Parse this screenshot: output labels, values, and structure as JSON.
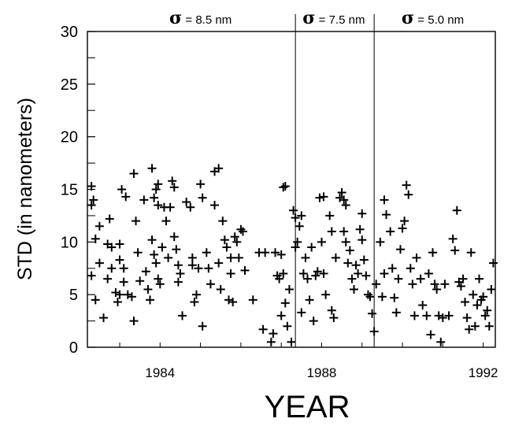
{
  "chart_data": {
    "type": "scatter",
    "title": "",
    "xlabel": "YEAR",
    "ylabel": "STD  (in nanometers)",
    "xlim": [
      1982.2,
      1992.3
    ],
    "ylim": [
      0,
      30
    ],
    "x_ticks": [
      {
        "value": 1984,
        "label": "1984"
      },
      {
        "value": 1988,
        "label": "1988"
      },
      {
        "value": 1992,
        "label": "1992"
      }
    ],
    "y_ticks": [
      {
        "value": 0,
        "label": "0"
      },
      {
        "value": 5,
        "label": "5"
      },
      {
        "value": 10,
        "label": "10"
      },
      {
        "value": 15,
        "label": "15"
      },
      {
        "value": 20,
        "label": "20"
      },
      {
        "value": 25,
        "label": "25"
      },
      {
        "value": 30,
        "label": "30"
      }
    ],
    "marker": "+",
    "grid": false,
    "period_boundaries": [
      1987.35,
      1989.3
    ],
    "period_labels": [
      {
        "sigma": "σ",
        "text": "= 8.5 nm",
        "x_center": 1985.0
      },
      {
        "sigma": "σ",
        "text": "= 7.5 nm",
        "x_center": 1988.3
      },
      {
        "sigma": "σ",
        "text": "= 5.0 nm",
        "x_center": 1990.75
      }
    ],
    "series": [
      {
        "points": [
          [
            1982.3,
            13.5
          ],
          [
            1982.35,
            14.0
          ],
          [
            1982.3,
            15.3
          ],
          [
            1982.5,
            11.5
          ],
          [
            1982.4,
            10.3
          ],
          [
            1982.3,
            6.8
          ],
          [
            1982.4,
            4.5
          ],
          [
            1982.6,
            2.8
          ],
          [
            1982.5,
            8.0
          ],
          [
            1982.7,
            9.8
          ],
          [
            1982.8,
            9.5
          ],
          [
            1982.75,
            12.2
          ],
          [
            1982.7,
            6.5
          ],
          [
            1982.8,
            7.5
          ],
          [
            1982.9,
            5.2
          ],
          [
            1983.0,
            5.0
          ],
          [
            1982.95,
            4.3
          ],
          [
            1983.0,
            8.3
          ],
          [
            1983.1,
            6.2
          ],
          [
            1983.05,
            15.0
          ],
          [
            1983.15,
            14.3
          ],
          [
            1983.0,
            9.8
          ],
          [
            1983.1,
            7.5
          ],
          [
            1983.2,
            5.0
          ],
          [
            1983.3,
            4.8
          ],
          [
            1983.35,
            2.5
          ],
          [
            1983.35,
            16.5
          ],
          [
            1983.4,
            12.0
          ],
          [
            1983.45,
            9.0
          ],
          [
            1983.5,
            6.3
          ],
          [
            1983.6,
            14.0
          ],
          [
            1983.65,
            7.2
          ],
          [
            1983.7,
            5.5
          ],
          [
            1983.75,
            4.5
          ],
          [
            1983.8,
            17.0
          ],
          [
            1983.85,
            14.2
          ],
          [
            1983.9,
            15.0
          ],
          [
            1983.95,
            13.5
          ],
          [
            1983.95,
            15.5
          ],
          [
            1983.8,
            10.2
          ],
          [
            1983.85,
            8.8
          ],
          [
            1983.9,
            8.0
          ],
          [
            1983.95,
            6.5
          ],
          [
            1984.0,
            6.0
          ],
          [
            1984.05,
            9.5
          ],
          [
            1984.1,
            13.3
          ],
          [
            1984.15,
            12.0
          ],
          [
            1984.2,
            8.5
          ],
          [
            1984.25,
            13.3
          ],
          [
            1984.3,
            15.8
          ],
          [
            1984.35,
            15.2
          ],
          [
            1984.35,
            10.5
          ],
          [
            1984.4,
            9.3
          ],
          [
            1984.45,
            7.8
          ],
          [
            1984.5,
            7.0
          ],
          [
            1984.45,
            6.2
          ],
          [
            1984.55,
            3.0
          ],
          [
            1984.65,
            13.8
          ],
          [
            1984.75,
            13.3
          ],
          [
            1984.8,
            8.5
          ],
          [
            1984.8,
            7.8
          ],
          [
            1984.9,
            5.0
          ],
          [
            1984.85,
            4.3
          ],
          [
            1984.95,
            7.5
          ],
          [
            1985.0,
            15.5
          ],
          [
            1985.05,
            14.2
          ],
          [
            1985.05,
            2.0
          ],
          [
            1985.15,
            9.0
          ],
          [
            1985.2,
            7.5
          ],
          [
            1985.25,
            6.0
          ],
          [
            1985.35,
            16.7
          ],
          [
            1985.45,
            17.0
          ],
          [
            1985.35,
            13.5
          ],
          [
            1985.45,
            8.0
          ],
          [
            1985.5,
            5.5
          ],
          [
            1985.55,
            12.0
          ],
          [
            1985.6,
            10.2
          ],
          [
            1985.65,
            9.5
          ],
          [
            1985.7,
            4.5
          ],
          [
            1985.75,
            8.5
          ],
          [
            1985.75,
            7.0
          ],
          [
            1985.8,
            4.3
          ],
          [
            1985.85,
            10.5
          ],
          [
            1985.9,
            10.0
          ],
          [
            1985.95,
            8.5
          ],
          [
            1986.0,
            11.2
          ],
          [
            1986.05,
            11.0
          ],
          [
            1986.1,
            7.3
          ],
          [
            1986.3,
            4.5
          ],
          [
            1986.45,
            9.0
          ],
          [
            1986.55,
            1.7
          ],
          [
            1986.6,
            9.0
          ],
          [
            1986.75,
            0.5
          ],
          [
            1986.8,
            1.3
          ],
          [
            1986.85,
            9.0
          ],
          [
            1986.9,
            6.8
          ],
          [
            1986.95,
            6.5
          ],
          [
            1987.0,
            3.0
          ],
          [
            1987.0,
            8.8
          ],
          [
            1987.05,
            15.2
          ],
          [
            1987.1,
            15.3
          ],
          [
            1987.05,
            7.0
          ],
          [
            1987.1,
            4.2
          ],
          [
            1987.15,
            2.0
          ],
          [
            1987.2,
            5.5
          ],
          [
            1987.25,
            0.5
          ],
          [
            1987.3,
            13.0
          ],
          [
            1987.35,
            12.3
          ],
          [
            1987.35,
            9.5
          ],
          [
            1987.45,
            11.5
          ],
          [
            1987.4,
            10.0
          ],
          [
            1987.5,
            12.5
          ],
          [
            1987.55,
            7.0
          ],
          [
            1987.5,
            3.3
          ],
          [
            1987.6,
            8.5
          ],
          [
            1987.65,
            6.5
          ],
          [
            1987.7,
            4.5
          ],
          [
            1987.75,
            9.5
          ],
          [
            1987.8,
            2.5
          ],
          [
            1987.85,
            6.8
          ],
          [
            1987.9,
            7.2
          ],
          [
            1987.95,
            14.2
          ],
          [
            1988.0,
            10.0
          ],
          [
            1988.05,
            14.3
          ],
          [
            1988.05,
            7.0
          ],
          [
            1988.1,
            5.0
          ],
          [
            1988.2,
            12.5
          ],
          [
            1988.25,
            11.0
          ],
          [
            1988.25,
            3.5
          ],
          [
            1988.3,
            2.8
          ],
          [
            1988.35,
            8.5
          ],
          [
            1988.45,
            14.2
          ],
          [
            1988.5,
            14.7
          ],
          [
            1988.55,
            14.0
          ],
          [
            1988.55,
            11.0
          ],
          [
            1988.6,
            10.0
          ],
          [
            1988.6,
            13.5
          ],
          [
            1988.65,
            8.0
          ],
          [
            1988.7,
            9.2
          ],
          [
            1988.75,
            6.5
          ],
          [
            1988.8,
            5.5
          ],
          [
            1988.85,
            7.8
          ],
          [
            1988.9,
            7.0
          ],
          [
            1988.95,
            11.2
          ],
          [
            1989.0,
            12.7
          ],
          [
            1989.0,
            10.2
          ],
          [
            1989.05,
            8.3
          ],
          [
            1989.1,
            6.8
          ],
          [
            1989.15,
            5.0
          ],
          [
            1989.2,
            4.8
          ],
          [
            1989.25,
            3.2
          ],
          [
            1989.3,
            1.5
          ],
          [
            1989.35,
            6.0
          ],
          [
            1989.45,
            10.0
          ],
          [
            1989.55,
            7.0
          ],
          [
            1989.5,
            4.8
          ],
          [
            1989.55,
            14.0
          ],
          [
            1989.6,
            12.6
          ],
          [
            1989.7,
            11.0
          ],
          [
            1989.75,
            7.5
          ],
          [
            1989.8,
            4.7
          ],
          [
            1989.85,
            3.3
          ],
          [
            1989.9,
            6.5
          ],
          [
            1989.95,
            9.3
          ],
          [
            1990.0,
            11.3
          ],
          [
            1990.05,
            12.0
          ],
          [
            1990.1,
            15.4
          ],
          [
            1990.15,
            14.5
          ],
          [
            1990.2,
            7.5
          ],
          [
            1990.25,
            6.0
          ],
          [
            1990.3,
            3.0
          ],
          [
            1990.35,
            8.5
          ],
          [
            1990.45,
            6.5
          ],
          [
            1990.5,
            4.0
          ],
          [
            1990.6,
            3.0
          ],
          [
            1990.65,
            7.0
          ],
          [
            1990.7,
            1.2
          ],
          [
            1990.75,
            9.0
          ],
          [
            1990.8,
            6.0
          ],
          [
            1990.85,
            5.5
          ],
          [
            1990.9,
            3.0
          ],
          [
            1990.95,
            0.5
          ],
          [
            1991.0,
            2.8
          ],
          [
            1991.05,
            6.0
          ],
          [
            1991.15,
            3.0
          ],
          [
            1991.25,
            10.3
          ],
          [
            1991.3,
            9.2
          ],
          [
            1991.35,
            13.0
          ],
          [
            1991.4,
            6.2
          ],
          [
            1991.45,
            5.8
          ],
          [
            1991.5,
            6.5
          ],
          [
            1991.55,
            4.3
          ],
          [
            1991.6,
            2.8
          ],
          [
            1991.65,
            1.7
          ],
          [
            1991.7,
            9.0
          ],
          [
            1991.75,
            5.0
          ],
          [
            1991.8,
            2.0
          ],
          [
            1991.85,
            4.0
          ],
          [
            1991.9,
            6.5
          ],
          [
            1991.95,
            4.5
          ],
          [
            1992.0,
            4.8
          ],
          [
            1992.05,
            3.0
          ],
          [
            1992.1,
            3.5
          ],
          [
            1992.15,
            2.0
          ],
          [
            1992.2,
            5.5
          ],
          [
            1992.25,
            8.0
          ]
        ]
      }
    ]
  }
}
